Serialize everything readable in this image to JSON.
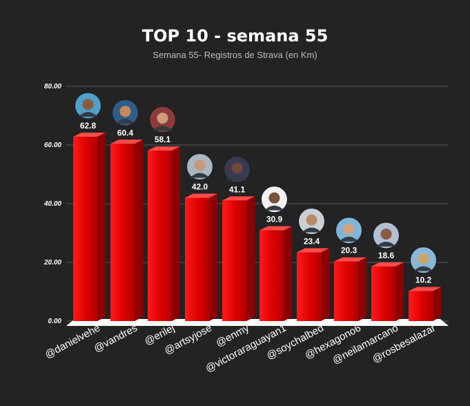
{
  "chart_data": {
    "type": "bar",
    "title": "TOP 10 - semana 55",
    "subtitle": "Semana 55- Registros de Strava (en Km)",
    "categories": [
      "@danielvehe",
      "@vandres",
      "@erilej",
      "@artsyjose",
      "@enmy",
      "@victoraraguayan1",
      "@soychalbed",
      "@hexagono6",
      "@neilamarcano",
      "@rosbesalazar"
    ],
    "values": [
      62.8,
      60.4,
      58.1,
      42.0,
      41.1,
      30.9,
      23.4,
      20.3,
      18.6,
      10.2
    ],
    "value_labels": [
      "62.8",
      "60.4",
      "58.1",
      "42.0",
      "41.1",
      "30.9",
      "23.4",
      "20.3",
      "18.6",
      "10.2"
    ],
    "yticks": [
      "0.00",
      "20.00",
      "40.00",
      "60.00",
      "80.00"
    ],
    "ylim": [
      0,
      80
    ],
    "grid": true,
    "legend": "none",
    "xlabel": "",
    "ylabel": "",
    "bar_color": "#e10000",
    "background": "#232323"
  }
}
